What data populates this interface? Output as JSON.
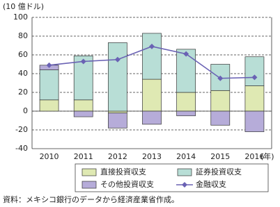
{
  "chart_data": {
    "type": "stacked_bar_line",
    "y_unit": "(10 億ドル)",
    "x_unit": "(年)",
    "categories": [
      "2010",
      "2011",
      "2012",
      "2013",
      "2014",
      "2015",
      "2016"
    ],
    "series": [
      {
        "name": "直接投資収支",
        "kind": "bar",
        "color": "#dfe9b3",
        "values": [
          12,
          12,
          -2,
          34,
          20,
          22,
          27
        ]
      },
      {
        "name": "証券投資収支",
        "kind": "bar",
        "color": "#b8ded6",
        "values": [
          32,
          47,
          73,
          49,
          46,
          28,
          31
        ]
      },
      {
        "name": "その他投資収支",
        "kind": "bar",
        "color": "#b6acd9",
        "values": [
          5,
          -6,
          -16,
          -14,
          -5,
          -15,
          -22
        ]
      },
      {
        "name": "金融収支",
        "kind": "line",
        "color": "#6a62b4",
        "values": [
          49,
          53,
          55,
          69,
          61,
          35,
          36
        ]
      }
    ],
    "ylim": [
      -40,
      100
    ],
    "yticks": [
      -40,
      -20,
      0,
      20,
      40,
      60,
      80,
      100
    ],
    "grid": true,
    "source": "資料：メキシコ銀行のデータから経済産業省作成。"
  }
}
